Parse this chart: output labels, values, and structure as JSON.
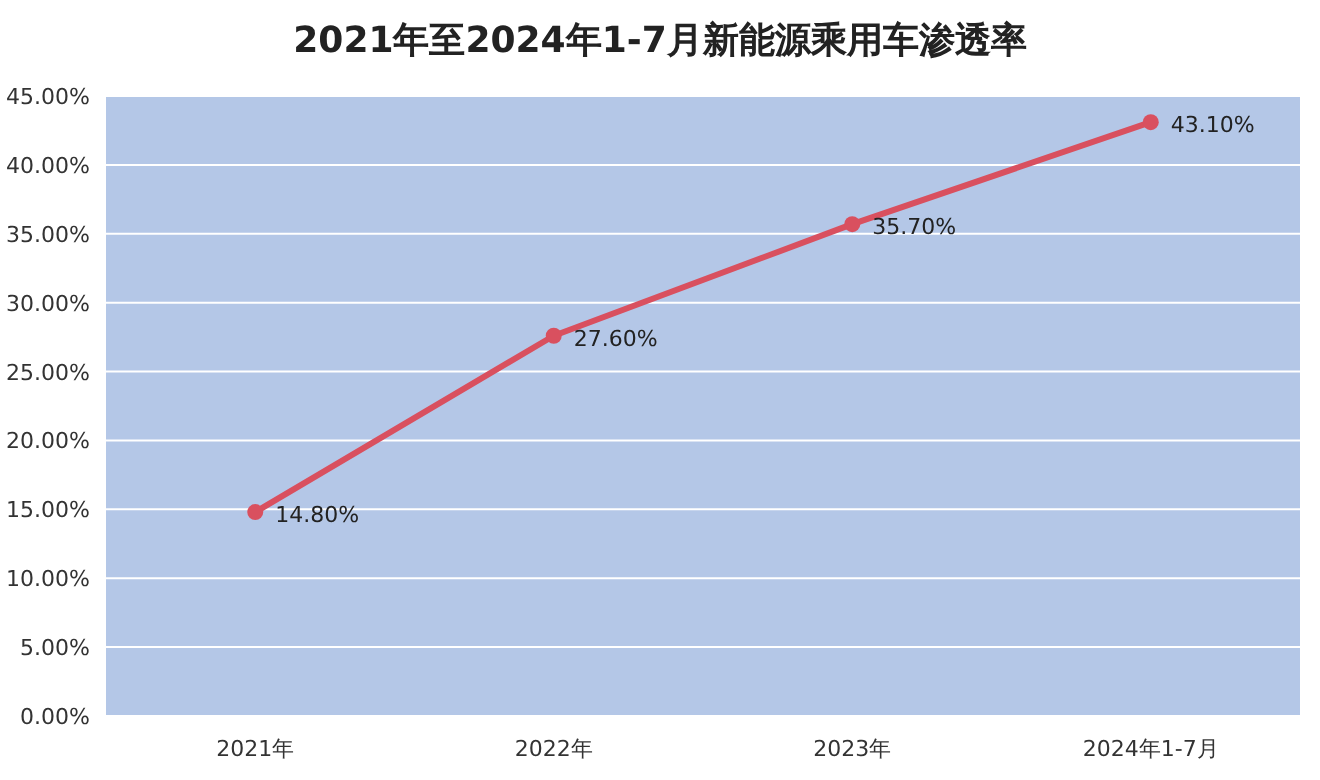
{
  "chart_data": {
    "type": "line",
    "title": "2021年至2024年1-7月新能源乘用车渗透率",
    "categories": [
      "2021年",
      "2022年",
      "2023年",
      "2024年1-7月"
    ],
    "series": [
      {
        "color": "#d9505f",
        "values": [
          14.8,
          27.6,
          35.7,
          43.1
        ],
        "value_labels": [
          "14.80%",
          "27.60%",
          "35.70%",
          "43.10%"
        ]
      }
    ],
    "ylim": [
      0,
      45
    ],
    "yticks": [
      {
        "value": 0,
        "label": "0.00%"
      },
      {
        "value": 5,
        "label": "5.00%"
      },
      {
        "value": 10,
        "label": "10.00%"
      },
      {
        "value": 15,
        "label": "15.00%"
      },
      {
        "value": 20,
        "label": "20.00%"
      },
      {
        "value": 25,
        "label": "25.00%"
      },
      {
        "value": 30,
        "label": "30.00%"
      },
      {
        "value": 35,
        "label": "35.00%"
      },
      {
        "value": 40,
        "label": "40.00%"
      },
      {
        "value": 45,
        "label": "45.00%"
      }
    ],
    "grid": "y",
    "marker": "circle",
    "line_style": "solid"
  }
}
